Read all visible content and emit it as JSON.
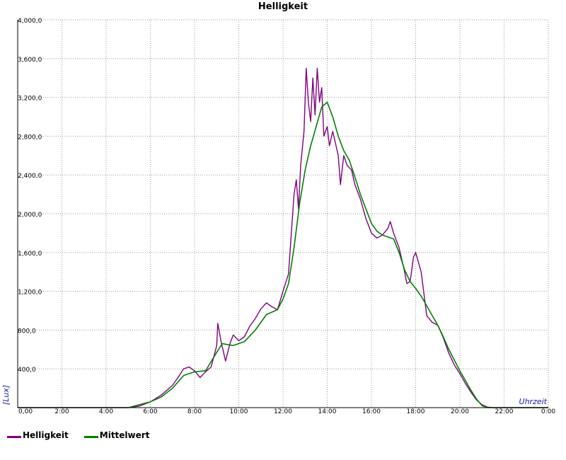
{
  "chart_data": {
    "type": "line",
    "title": "Helligkeit",
    "xlabel": "Uhrzeit",
    "ylabel": "[Lux]",
    "xlim": [
      0,
      24
    ],
    "ylim": [
      0,
      4000
    ],
    "x_tick_labels": [
      "0,00",
      "2:00",
      "4:00",
      "6:00",
      "8:00",
      "10:00",
      "12:00",
      "14:00",
      "16:00",
      "18:00",
      "20:00",
      "22:00",
      "0:00"
    ],
    "y_tick_labels": [
      "400,0",
      "800,0",
      "1,200,0",
      "1,600,0",
      "2,000,0",
      "2,400,0",
      "2,800,0",
      "3,200,0",
      "3,600,0",
      "4,000,0"
    ],
    "grid": true,
    "legend_position": "bottom-left",
    "series": [
      {
        "name": "Helligkeit",
        "color": "#800080",
        "points": [
          [
            0,
            0
          ],
          [
            5.0,
            0
          ],
          [
            5.5,
            15
          ],
          [
            6.0,
            60
          ],
          [
            6.5,
            130
          ],
          [
            7.0,
            230
          ],
          [
            7.25,
            310
          ],
          [
            7.5,
            400
          ],
          [
            7.75,
            420
          ],
          [
            8.0,
            380
          ],
          [
            8.25,
            310
          ],
          [
            8.5,
            370
          ],
          [
            8.75,
            420
          ],
          [
            9.0,
            640
          ],
          [
            9.05,
            870
          ],
          [
            9.2,
            680
          ],
          [
            9.4,
            480
          ],
          [
            9.6,
            660
          ],
          [
            9.75,
            750
          ],
          [
            10.0,
            690
          ],
          [
            10.25,
            730
          ],
          [
            10.5,
            840
          ],
          [
            10.75,
            920
          ],
          [
            11.0,
            1020
          ],
          [
            11.25,
            1080
          ],
          [
            11.5,
            1040
          ],
          [
            11.75,
            1010
          ],
          [
            12.0,
            1200
          ],
          [
            12.25,
            1380
          ],
          [
            12.5,
            2200
          ],
          [
            12.6,
            2350
          ],
          [
            12.7,
            2050
          ],
          [
            12.8,
            2500
          ],
          [
            12.95,
            2850
          ],
          [
            13.05,
            3500
          ],
          [
            13.15,
            3150
          ],
          [
            13.25,
            2950
          ],
          [
            13.35,
            3400
          ],
          [
            13.45,
            3020
          ],
          [
            13.55,
            3500
          ],
          [
            13.65,
            3150
          ],
          [
            13.75,
            3300
          ],
          [
            13.85,
            2800
          ],
          [
            14.0,
            2900
          ],
          [
            14.1,
            2700
          ],
          [
            14.25,
            2850
          ],
          [
            14.4,
            2700
          ],
          [
            14.5,
            2600
          ],
          [
            14.6,
            2300
          ],
          [
            14.75,
            2600
          ],
          [
            14.9,
            2500
          ],
          [
            15.1,
            2450
          ],
          [
            15.25,
            2300
          ],
          [
            15.5,
            2150
          ],
          [
            15.75,
            1950
          ],
          [
            16.0,
            1800
          ],
          [
            16.25,
            1750
          ],
          [
            16.5,
            1780
          ],
          [
            16.75,
            1850
          ],
          [
            16.85,
            1920
          ],
          [
            17.0,
            1800
          ],
          [
            17.25,
            1650
          ],
          [
            17.5,
            1400
          ],
          [
            17.6,
            1280
          ],
          [
            17.75,
            1300
          ],
          [
            17.9,
            1550
          ],
          [
            18.0,
            1600
          ],
          [
            18.25,
            1400
          ],
          [
            18.5,
            950
          ],
          [
            18.75,
            880
          ],
          [
            19.0,
            850
          ],
          [
            19.25,
            720
          ],
          [
            19.5,
            560
          ],
          [
            19.75,
            440
          ],
          [
            20.0,
            350
          ],
          [
            20.25,
            250
          ],
          [
            20.5,
            160
          ],
          [
            20.75,
            80
          ],
          [
            21.0,
            30
          ],
          [
            21.25,
            5
          ],
          [
            21.5,
            0
          ],
          [
            24,
            0
          ]
        ]
      },
      {
        "name": "Mittelwert",
        "color": "#008000",
        "points": [
          [
            0,
            0
          ],
          [
            5.0,
            0
          ],
          [
            6.0,
            60
          ],
          [
            6.5,
            110
          ],
          [
            7.0,
            200
          ],
          [
            7.5,
            330
          ],
          [
            8.0,
            370
          ],
          [
            8.5,
            380
          ],
          [
            9.0,
            570
          ],
          [
            9.25,
            660
          ],
          [
            9.75,
            640
          ],
          [
            10.25,
            680
          ],
          [
            10.75,
            800
          ],
          [
            11.25,
            960
          ],
          [
            11.75,
            1010
          ],
          [
            12.0,
            1120
          ],
          [
            12.25,
            1280
          ],
          [
            12.5,
            1650
          ],
          [
            12.75,
            2100
          ],
          [
            13.0,
            2450
          ],
          [
            13.25,
            2700
          ],
          [
            13.5,
            2900
          ],
          [
            13.75,
            3100
          ],
          [
            14.0,
            3150
          ],
          [
            14.25,
            3000
          ],
          [
            14.5,
            2800
          ],
          [
            14.75,
            2650
          ],
          [
            15.0,
            2550
          ],
          [
            15.25,
            2380
          ],
          [
            15.5,
            2200
          ],
          [
            15.75,
            2050
          ],
          [
            16.0,
            1900
          ],
          [
            16.25,
            1820
          ],
          [
            16.5,
            1780
          ],
          [
            16.75,
            1760
          ],
          [
            17.0,
            1740
          ],
          [
            17.25,
            1600
          ],
          [
            17.5,
            1420
          ],
          [
            17.75,
            1300
          ],
          [
            18.0,
            1230
          ],
          [
            18.25,
            1150
          ],
          [
            18.5,
            1050
          ],
          [
            18.75,
            950
          ],
          [
            19.0,
            850
          ],
          [
            19.25,
            730
          ],
          [
            19.5,
            600
          ],
          [
            19.75,
            490
          ],
          [
            20.0,
            380
          ],
          [
            20.25,
            280
          ],
          [
            20.5,
            180
          ],
          [
            20.75,
            90
          ],
          [
            21.0,
            20
          ],
          [
            21.25,
            0
          ],
          [
            24,
            0
          ]
        ]
      }
    ]
  }
}
